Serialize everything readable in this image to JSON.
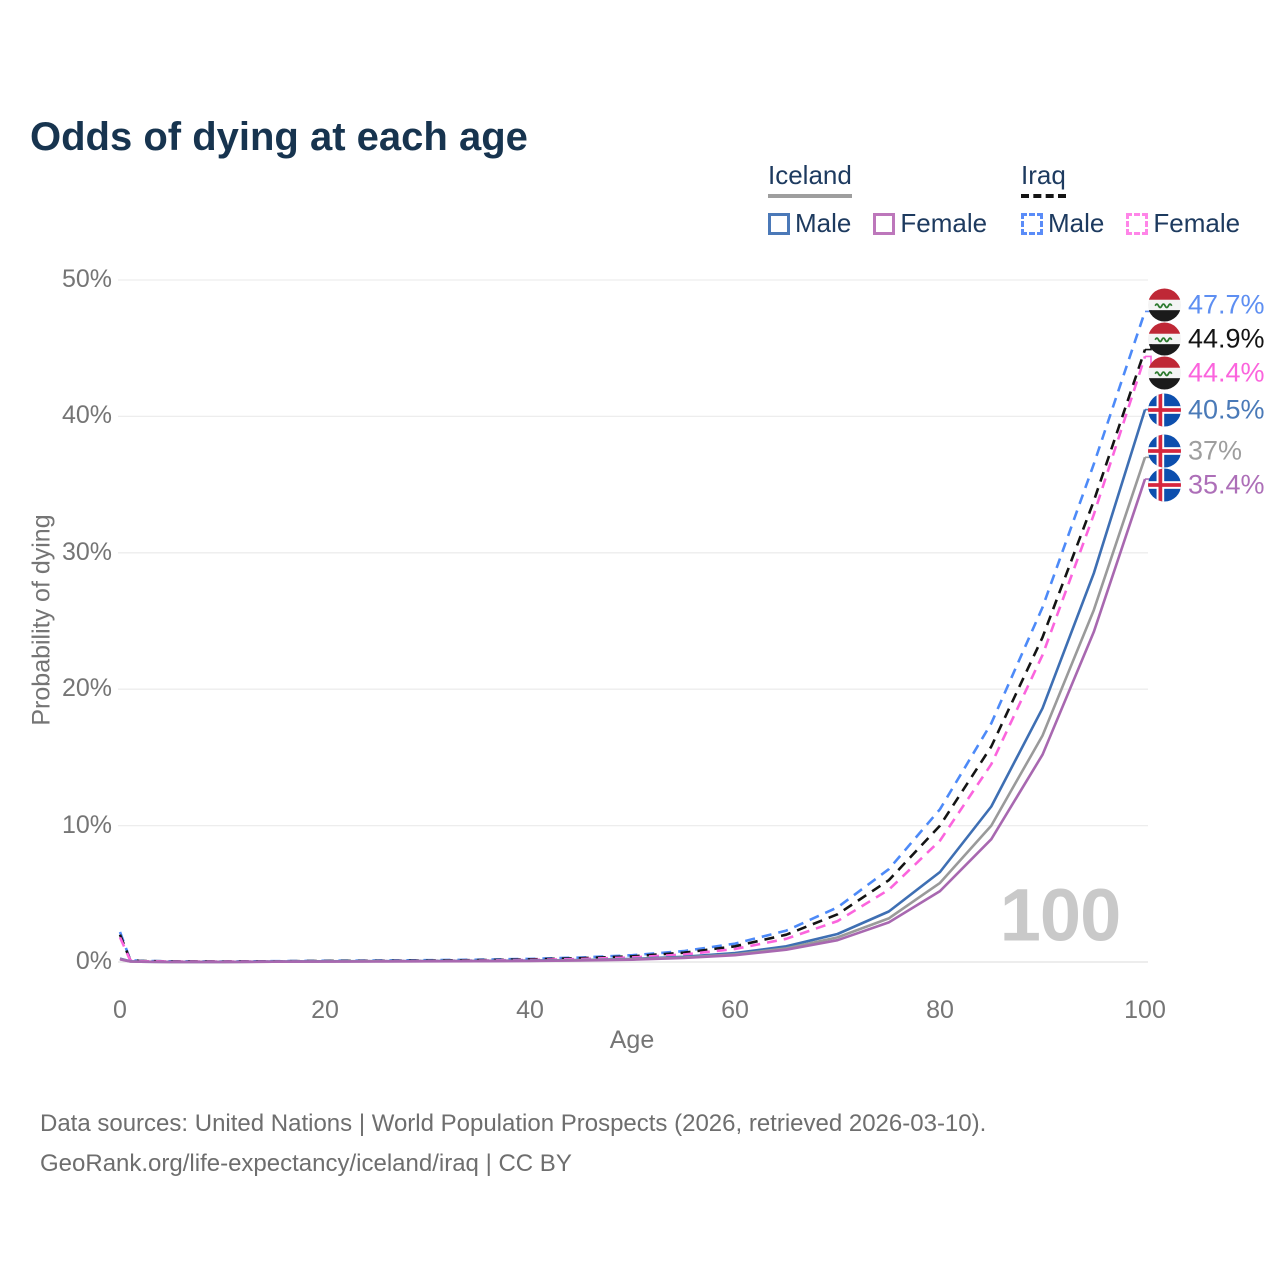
{
  "title": "Odds of dying at each age",
  "watermark": "100",
  "legend": {
    "groups": [
      {
        "country": "Iceland",
        "line_style": "solid",
        "underline_color": "#9e9e9e",
        "items": [
          {
            "label": "Male",
            "box_color": "#4b79b8"
          },
          {
            "label": "Female",
            "box_color": "#bd77bb"
          }
        ]
      },
      {
        "country": "Iraq",
        "line_style": "dashed",
        "underline_color": "#141414",
        "items": [
          {
            "label": "Male",
            "box_color": "#5a8cf8"
          },
          {
            "label": "Female",
            "box_color": "#ff85e8"
          }
        ]
      }
    ]
  },
  "chart_data": {
    "type": "line",
    "title": "Odds of dying at each age",
    "xlabel": "Age",
    "ylabel": "Probability of dying",
    "xlim": [
      0,
      100
    ],
    "ylim": [
      0,
      50
    ],
    "grid": true,
    "x_ticks": [
      0,
      20,
      40,
      60,
      80,
      100
    ],
    "x_tick_labels": [
      "0",
      "20",
      "40",
      "60",
      "80",
      "100"
    ],
    "y_tick_values": [
      0,
      10,
      20,
      30,
      40,
      50
    ],
    "y_tick_labels": [
      "0%",
      "10%",
      "20%",
      "30%",
      "40%",
      "50%"
    ],
    "x": [
      0,
      1,
      2,
      5,
      10,
      15,
      20,
      25,
      30,
      35,
      40,
      45,
      50,
      55,
      60,
      65,
      70,
      75,
      80,
      85,
      90,
      95,
      100
    ],
    "series": [
      {
        "name": "Iraq Male",
        "country": "Iraq",
        "sex": "Male",
        "flag": "iraq",
        "color": "#4d8af8",
        "dash": true,
        "end_label": "47.7%",
        "end_label_color": "#5e8ff2",
        "values": [
          2.2,
          0.15,
          0.08,
          0.05,
          0.04,
          0.06,
          0.09,
          0.11,
          0.13,
          0.17,
          0.23,
          0.33,
          0.5,
          0.8,
          1.35,
          2.3,
          4.0,
          6.8,
          11.2,
          17.5,
          26.0,
          36.5,
          47.7
        ]
      },
      {
        "name": "Iraq Total",
        "country": "Iraq",
        "sex": "Both",
        "flag": "iraq",
        "color": "#141414",
        "dash": true,
        "end_label": "44.9%",
        "end_label_color": "#141414",
        "values": [
          2.0,
          0.13,
          0.07,
          0.045,
          0.035,
          0.05,
          0.07,
          0.09,
          0.11,
          0.14,
          0.19,
          0.28,
          0.42,
          0.68,
          1.15,
          2.0,
          3.5,
          6.0,
          10.0,
          15.8,
          23.8,
          33.8,
          44.9
        ]
      },
      {
        "name": "Iraq Female",
        "country": "Iraq",
        "sex": "Female",
        "flag": "iraq",
        "color": "#fb64dd",
        "dash": true,
        "end_label": "44.4%",
        "end_label_color": "#fb64dd",
        "values": [
          1.8,
          0.12,
          0.06,
          0.04,
          0.03,
          0.04,
          0.05,
          0.06,
          0.08,
          0.11,
          0.15,
          0.22,
          0.34,
          0.55,
          0.95,
          1.7,
          3.0,
          5.3,
          8.9,
          14.5,
          22.5,
          32.8,
          44.4
        ]
      },
      {
        "name": "Iceland Male",
        "country": "Iceland",
        "sex": "Male",
        "flag": "iceland",
        "color": "#3e6fb3",
        "dash": false,
        "end_label": "40.5%",
        "end_label_color": "#4a7ab8",
        "values": [
          0.25,
          0.05,
          0.02,
          0.01,
          0.01,
          0.03,
          0.05,
          0.06,
          0.07,
          0.08,
          0.1,
          0.15,
          0.23,
          0.38,
          0.65,
          1.15,
          2.05,
          3.7,
          6.6,
          11.4,
          18.6,
          28.5,
          40.5
        ]
      },
      {
        "name": "Iceland Total",
        "country": "Iceland",
        "sex": "Both",
        "flag": "iceland",
        "color": "#9a9a9a",
        "dash": false,
        "end_label": "37%",
        "end_label_color": "#9e9e9e",
        "values": [
          0.22,
          0.04,
          0.02,
          0.01,
          0.01,
          0.025,
          0.04,
          0.05,
          0.06,
          0.07,
          0.09,
          0.13,
          0.2,
          0.33,
          0.56,
          1.0,
          1.8,
          3.2,
          5.8,
          10.0,
          16.6,
          25.8,
          37.0
        ]
      },
      {
        "name": "Iceland Female",
        "country": "Iceland",
        "sex": "Female",
        "flag": "iceland",
        "color": "#a868b0",
        "dash": false,
        "end_label": "35.4%",
        "end_label_color": "#ad6fb8",
        "values": [
          0.2,
          0.04,
          0.02,
          0.01,
          0.01,
          0.02,
          0.03,
          0.04,
          0.05,
          0.06,
          0.08,
          0.11,
          0.17,
          0.29,
          0.5,
          0.9,
          1.6,
          2.9,
          5.2,
          9.0,
          15.2,
          24.2,
          35.4
        ]
      }
    ]
  },
  "colors": {
    "title_text": "#17344f",
    "axis_text": "#757575",
    "gridline": "#ededed",
    "zero_line": "#e2e2e2",
    "watermark": "#c9c9c9",
    "footer_text": "#6e6e6e"
  },
  "footer": {
    "line1": "Data sources: United Nations | World Population Prospects (2026, retrieved 2026-03-10).",
    "line2": "GeoRank.org/life-expectancy/iceland/iraq | CC BY"
  }
}
